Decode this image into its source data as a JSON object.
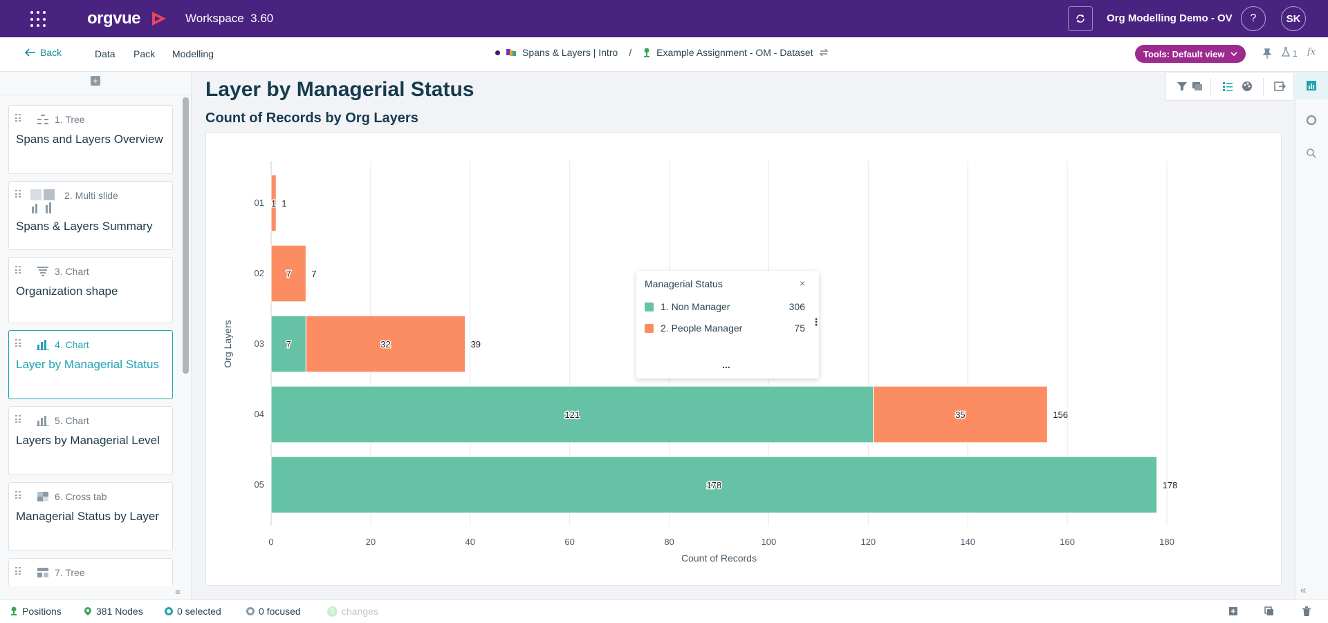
{
  "topbar": {
    "logo_text": "orgvue",
    "workspace_label": "Workspace",
    "version": "3.60",
    "project_name": "Org Modelling Demo - OV",
    "help_label": "?",
    "user_initials": "SK"
  },
  "subnav": {
    "back_label": "Back",
    "links": [
      "Data",
      "Pack",
      "Modelling"
    ],
    "breadcrumb_pack": "Spans & Layers | Intro",
    "breadcrumb_sep": "/",
    "breadcrumb_dataset": "Example Assignment - OM - Dataset",
    "tools_label": "Tools: Default view",
    "flask_count": "1",
    "fx_label": "fx"
  },
  "sidebar": {
    "cards": [
      {
        "type": "1. Tree",
        "title": "Spans and Layers Overview",
        "icon": "tree-icon",
        "active": false
      },
      {
        "type": "2. Multi slide",
        "title": "Spans & Layers Summary",
        "icon": "multi-slide-icon",
        "active": false
      },
      {
        "type": "3. Chart",
        "title": "Organization shape",
        "icon": "funnel-chart-icon",
        "active": false
      },
      {
        "type": "4. Chart",
        "title": "Layer by Managerial Status",
        "icon": "bar-chart-icon",
        "active": true
      },
      {
        "type": "5. Chart",
        "title": "Layers by Managerial Level",
        "icon": "bar-chart-icon",
        "active": false
      },
      {
        "type": "6. Cross tab",
        "title": "Managerial Status by Layer",
        "icon": "cross-tab-icon",
        "active": false
      },
      {
        "type": "7. Tree",
        "title": "",
        "icon": "tree-grid-icon",
        "active": false
      }
    ]
  },
  "main": {
    "page_title": "Layer by Managerial Status",
    "chart_subtitle": "Count of Records by Org Layers"
  },
  "legend": {
    "title": "Managerial Status",
    "close": "×",
    "items": [
      {
        "name": "1. Non Manager",
        "count": "306",
        "color": "#66c2a5"
      },
      {
        "name": "2. People Manager",
        "count": "75",
        "color": "#fc8d62"
      }
    ],
    "more": "...",
    "kebab": "⋮"
  },
  "chart_data": {
    "type": "bar",
    "orientation": "horizontal",
    "stacked": true,
    "title": "Count of Records by Org Layers",
    "xlabel": "Count of Records",
    "ylabel": "Org Layers",
    "categories": [
      "01",
      "02",
      "03",
      "04",
      "05"
    ],
    "series": [
      {
        "name": "1. Non Manager",
        "color": "#66c2a5",
        "values": [
          0,
          0,
          7,
          121,
          178
        ]
      },
      {
        "name": "2. People Manager",
        "color": "#fc8d62",
        "values": [
          1,
          7,
          32,
          35,
          0
        ]
      }
    ],
    "totals": [
      1,
      7,
      39,
      156,
      178
    ],
    "xlim": [
      0,
      180
    ],
    "xticks": [
      0,
      20,
      40,
      60,
      80,
      100,
      120,
      140,
      160,
      180
    ],
    "grid": true
  },
  "statusbar": {
    "positions": "Positions",
    "nodes": "381 Nodes",
    "selected": "0 selected",
    "focused": "0 focused",
    "changes": "changes",
    "changes_count": "0"
  },
  "colors": {
    "brand": "#4a2380",
    "accent": "#1fa3b5",
    "tools": "#9c2a8f",
    "non_manager": "#66c2a5",
    "people_manager": "#fc8d62"
  }
}
